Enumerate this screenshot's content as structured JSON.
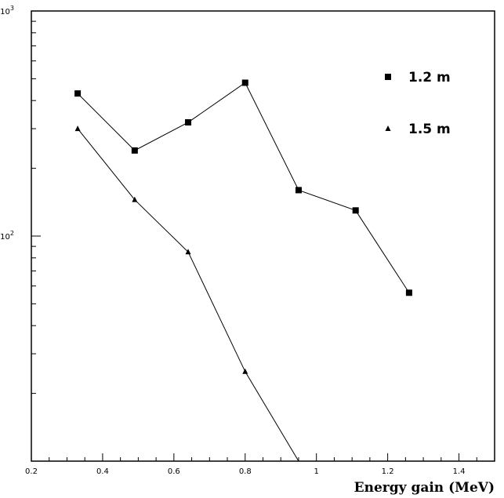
{
  "chart_data": {
    "type": "line",
    "title": "",
    "xlabel": "Energy gain (MeV)",
    "ylabel": "",
    "xlim": [
      0.2,
      1.5
    ],
    "ylim": [
      10,
      1000
    ],
    "y_scale": "log",
    "grid": false,
    "legend_position": "top-right",
    "x_ticks": [
      0.2,
      0.4,
      0.6,
      0.8,
      1,
      1.2,
      1.4
    ],
    "x_tick_labels": [
      "0.2",
      "0.4",
      "0.6",
      "0.8",
      "1",
      "1.2",
      "1.4"
    ],
    "y_tick_labels": [
      {
        "base": "10",
        "exp": "3",
        "value": 1000
      },
      {
        "base": "10",
        "exp": "2",
        "value": 100
      }
    ],
    "series": [
      {
        "name": "1.2 m",
        "marker": "square",
        "color": "#000000",
        "x": [
          0.33,
          0.49,
          0.64,
          0.8,
          0.95,
          1.11,
          1.26
        ],
        "y": [
          430,
          240,
          320,
          480,
          160,
          130,
          56
        ]
      },
      {
        "name": "1.5 m",
        "marker": "triangle",
        "color": "#000000",
        "x": [
          0.33,
          0.49,
          0.64,
          0.8,
          0.95
        ],
        "y": [
          300,
          145,
          85,
          25,
          10
        ]
      }
    ]
  }
}
